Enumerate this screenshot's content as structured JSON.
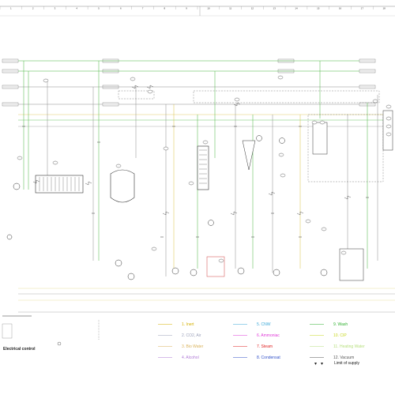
{
  "ruler": {
    "columns": [
      "1",
      "2",
      "3",
      "4",
      "5",
      "6",
      "7",
      "8",
      "9",
      "10",
      "11",
      "12",
      "13",
      "14",
      "15",
      "16",
      "17",
      "18"
    ]
  },
  "legend": [
    {
      "label": "1. Inert",
      "color": "#d4b000"
    },
    {
      "label": "2. CO2, Air",
      "color": "#9aa0b8"
    },
    {
      "label": "3. Bio Water",
      "color": "#d9b25a"
    },
    {
      "label": "4. Alcohol",
      "color": "#b07ad6"
    },
    {
      "label": "5. CNW",
      "color": "#3aa8d8"
    },
    {
      "label": "6. Ammoniac",
      "color": "#e03ad8"
    },
    {
      "label": "7. Steam",
      "color": "#e02020"
    },
    {
      "label": "8. Condensat",
      "color": "#3050c8"
    },
    {
      "label": "9. Wash",
      "color": "#30b030"
    },
    {
      "label": "10. CIP",
      "color": "#c8d820"
    },
    {
      "label": "11. Heating Water",
      "color": "#b8e080"
    },
    {
      "label": "12. Vacuum",
      "color": "#555555"
    }
  ],
  "labels": {
    "electrical_control": "Electrical control",
    "limit_of_supply": "Limit of supply"
  },
  "colors": {
    "green": "#46b43c",
    "grey": "#8a8a8a",
    "dark": "#333333",
    "yellow": "#d8c040",
    "pale_yellow": "#e8e0a0",
    "red": "#d04040"
  }
}
